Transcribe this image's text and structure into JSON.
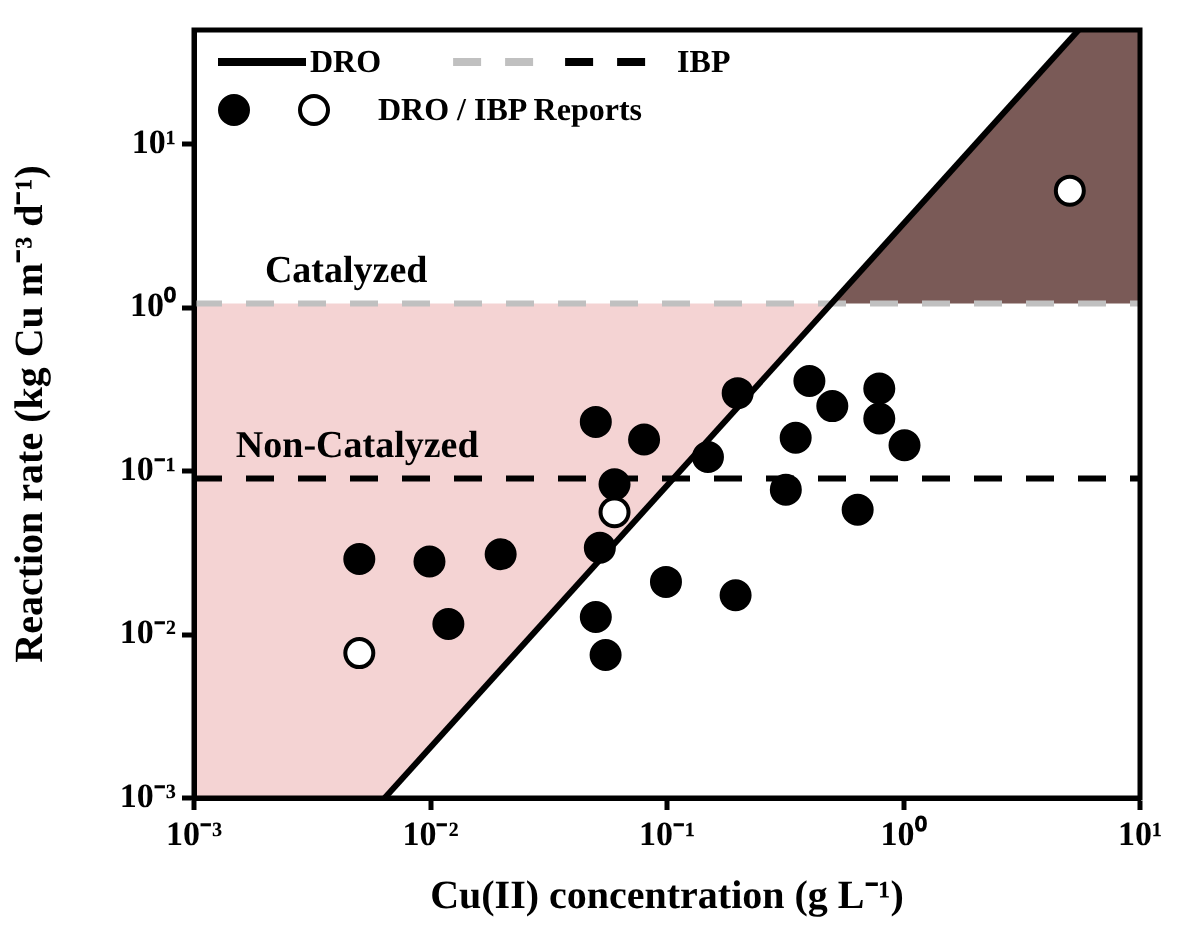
{
  "chart_data": {
    "type": "scatter",
    "xlabel": "Cu(II) concentration (g L⁻¹)",
    "ylabel": "Reaction rate (kg Cu m⁻³ d⁻¹)",
    "log": "xy",
    "grid": false,
    "legend": "top left",
    "xlim": [
      0.001,
      10
    ],
    "xticks": [
      {
        "value": 0.001,
        "label": "10⁻³"
      },
      {
        "value": 0.01,
        "label": "10⁻²"
      },
      {
        "value": 0.1,
        "label": "10⁻¹"
      },
      {
        "value": 1,
        "label": "10⁰"
      },
      {
        "value": 10,
        "label": "10¹"
      }
    ],
    "ylim": [
      0.001,
      50
    ],
    "yticks": [
      {
        "value": 0.001,
        "label": "10⁻³"
      },
      {
        "value": 0.01,
        "label": "10⁻²"
      },
      {
        "value": 0.1,
        "label": "10⁻¹"
      },
      {
        "value": 1,
        "label": "10⁰"
      },
      {
        "value": 10,
        "label": "10¹"
      }
    ],
    "series": [
      {
        "type": "line",
        "name": "DRO",
        "color": "#000000",
        "line_style": "solid",
        "marker": "none",
        "x": [
          0.0064,
          5.5
        ],
        "values": [
          0.001,
          50
        ]
      },
      {
        "type": "line",
        "color": "#c0c0c0",
        "line_style": "dashed",
        "marker": "none",
        "x": [
          0.001,
          10
        ],
        "values": [
          1.06,
          1.06
        ]
      },
      {
        "type": "line",
        "name": "IBP",
        "color": "#000000",
        "line_style": "dashed",
        "marker": "none",
        "x": [
          0.001,
          10
        ],
        "values": [
          0.09,
          0.09
        ]
      },
      {
        "color": "#000000",
        "marker": "circle",
        "x": [
          0.005,
          0.0099,
          0.0198,
          0.05,
          0.08,
          0.06,
          0.052,
          0.199,
          0.149,
          0.4,
          0.5,
          0.35,
          0.318,
          0.79,
          0.79,
          1.01,
          0.64,
          0.099,
          0.195,
          0.0119,
          0.05,
          0.055
        ],
        "values": [
          0.029,
          0.028,
          0.031,
          0.2,
          0.156,
          0.083,
          0.034,
          0.3,
          0.122,
          0.356,
          0.25,
          0.16,
          0.077,
          0.32,
          0.21,
          0.144,
          0.058,
          0.021,
          0.0174,
          0.0116,
          0.0128,
          0.0075
        ]
      },
      {
        "name": "DRO / IBP Reports",
        "color": "#ffffff",
        "marker": "circle",
        "x": [
          0.005,
          0.06,
          5.05
        ],
        "values": [
          0.0077,
          0.056,
          5.2
        ]
      }
    ],
    "annotations": [
      {
        "text": "Catalyzed",
        "x": 0.0044,
        "y": 1.06
      },
      {
        "text": "Non-Catalyzed",
        "x": 0.0049,
        "y": 0.09
      }
    ]
  }
}
